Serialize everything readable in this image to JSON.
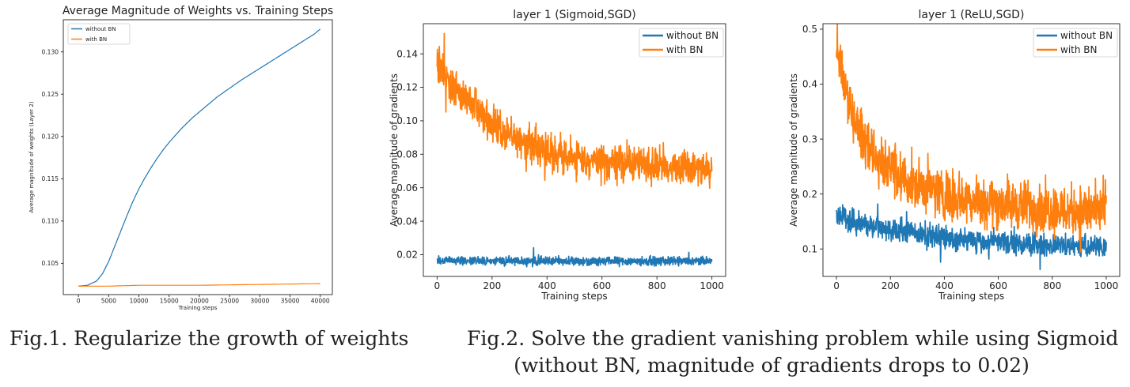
{
  "chart_data": [
    {
      "type": "line",
      "title": "Average Magnitude of Weights vs. Training Steps",
      "xlabel": "Training steps",
      "ylabel": "Average magnitude of weights (Layer 2)",
      "xlim": [
        -2500,
        42000
      ],
      "ylim": [
        0.1013,
        0.1338
      ],
      "xticks": [
        0,
        5000,
        10000,
        15000,
        20000,
        25000,
        30000,
        35000,
        40000
      ],
      "yticks": [
        0.105,
        0.11,
        0.115,
        0.12,
        0.125,
        0.13
      ],
      "ytick_labels": [
        "0.105",
        "0.110",
        "0.115",
        "0.120",
        "0.125",
        "0.130"
      ],
      "grid": false,
      "legend": "top-left",
      "series": [
        {
          "name": "without BN",
          "color": "#1f77b4",
          "x": [
            0,
            1500,
            3000,
            4000,
            5000,
            6000,
            7000,
            8000,
            9000,
            10000,
            11000,
            12000,
            13000,
            14000,
            15000,
            17000,
            19000,
            21000,
            23000,
            25000,
            27000,
            29000,
            31000,
            33000,
            35000,
            37000,
            39000,
            40000
          ],
          "y": [
            0.1023,
            0.1024,
            0.1029,
            0.1038,
            0.1052,
            0.107,
            0.1088,
            0.1106,
            0.1123,
            0.1138,
            0.1151,
            0.1163,
            0.1174,
            0.1184,
            0.1193,
            0.1209,
            0.1223,
            0.1235,
            0.1247,
            0.1257,
            0.1267,
            0.1276,
            0.1285,
            0.1294,
            0.1303,
            0.1312,
            0.1321,
            0.1327
          ]
        },
        {
          "name": "with BN",
          "color": "#ff7f0e",
          "x": [
            0,
            5000,
            10000,
            20000,
            30000,
            40000
          ],
          "y": [
            0.1023,
            0.1023,
            0.1024,
            0.1024,
            0.1025,
            0.1026
          ]
        }
      ]
    },
    {
      "type": "line",
      "title": "layer 1 (Sigmoid,SGD)",
      "xlabel": "Training steps",
      "ylabel": "Average magnitude of gradients",
      "xlim": [
        -50,
        1050
      ],
      "ylim": [
        0.007,
        0.158
      ],
      "xticks": [
        0,
        200,
        400,
        600,
        800,
        1000
      ],
      "yticks": [
        0.02,
        0.04,
        0.06,
        0.08,
        0.1,
        0.12,
        0.14
      ],
      "ytick_labels": [
        "0.02",
        "0.04",
        "0.06",
        "0.08",
        "0.10",
        "0.12",
        "0.14"
      ],
      "grid": false,
      "legend": "top-right",
      "series": [
        {
          "name": "without BN",
          "color": "#1f77b4",
          "x": [
            0,
            200,
            400,
            600,
            800,
            1000
          ],
          "y": [
            0.0165,
            0.0163,
            0.0162,
            0.0162,
            0.0161,
            0.0161
          ],
          "noise": 0.0018
        },
        {
          "name": "with BN",
          "color": "#ff7f0e",
          "x": [
            0,
            25,
            50,
            100,
            150,
            200,
            250,
            300,
            350,
            400,
            500,
            600,
            700,
            800,
            900,
            1000
          ],
          "y": [
            0.134,
            0.128,
            0.123,
            0.114,
            0.105,
            0.098,
            0.092,
            0.088,
            0.085,
            0.082,
            0.078,
            0.075,
            0.074,
            0.073,
            0.072,
            0.071
          ],
          "noise": 0.0075
        }
      ]
    },
    {
      "type": "line",
      "title": "layer 1 (ReLU,SGD)",
      "xlabel": "Training steps",
      "ylabel": "Average magnitude of gradients",
      "xlim": [
        -50,
        1050
      ],
      "ylim": [
        0.05,
        0.51
      ],
      "xticks": [
        0,
        200,
        400,
        600,
        800,
        1000
      ],
      "yticks": [
        0.1,
        0.2,
        0.3,
        0.4,
        0.5
      ],
      "ytick_labels": [
        "0.1",
        "0.2",
        "0.3",
        "0.4",
        "0.5"
      ],
      "grid": false,
      "legend": "top-right",
      "series": [
        {
          "name": "without BN",
          "color": "#1f77b4",
          "x": [
            0,
            100,
            200,
            300,
            400,
            500,
            600,
            700,
            800,
            900,
            1000
          ],
          "y": [
            0.16,
            0.145,
            0.135,
            0.127,
            0.121,
            0.116,
            0.112,
            0.109,
            0.107,
            0.105,
            0.103
          ],
          "noise": 0.014
        },
        {
          "name": "with BN",
          "color": "#ff7f0e",
          "x": [
            0,
            15,
            30,
            60,
            100,
            150,
            200,
            250,
            300,
            400,
            500,
            600,
            700,
            800,
            900,
            1000
          ],
          "y": [
            0.47,
            0.44,
            0.4,
            0.34,
            0.3,
            0.27,
            0.245,
            0.228,
            0.215,
            0.2,
            0.19,
            0.183,
            0.178,
            0.173,
            0.17,
            0.168
          ],
          "noise": 0.032
        }
      ]
    }
  ],
  "captions": {
    "fig1": "Fig.1. Regularize the growth of weights",
    "fig2_line1": "Fig.2. Solve the gradient vanishing problem while using Sigmoid",
    "fig2_line2": "(without BN, magnitude of gradients drops to 0.02)"
  }
}
